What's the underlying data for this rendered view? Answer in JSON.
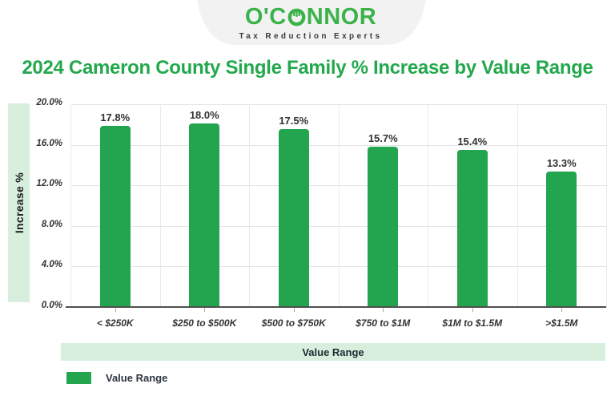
{
  "header": {
    "brand_full": "O'CONNOR",
    "brand_prefix": "O'C",
    "brand_suffix": "NNOR",
    "tagline": "Tax Reduction Experts"
  },
  "title": "2024 Cameron County Single Family % Increase by Value Range",
  "chart_data": {
    "type": "bar",
    "title": "2024 Cameron County Single Family % Increase by Value Range",
    "categories": [
      "< $250K",
      "$250 to $500K",
      "$500 to $750K",
      "$750 to $1M",
      "$1M to $1.5M",
      ">$1.5M"
    ],
    "values": [
      17.8,
      18.0,
      17.5,
      15.7,
      15.4,
      13.3
    ],
    "value_labels": [
      "17.8%",
      "18.0%",
      "17.5%",
      "15.7%",
      "15.4%",
      "13.3%"
    ],
    "xlabel": "Value Range",
    "ylabel": "Increase %",
    "ylim": [
      0,
      20
    ],
    "yticks": [
      20,
      16,
      12,
      8,
      4,
      0
    ],
    "ytick_labels": [
      "20.0%",
      "16.0%",
      "12.0%",
      "8.0%",
      "4.0%",
      "0.0%"
    ],
    "grid": true,
    "legend": {
      "position": "bottom-left",
      "items": [
        {
          "label": "Value Range",
          "color": "#23a44f"
        }
      ]
    },
    "bar_color": "#23a44f"
  },
  "colors": {
    "bar_green": "#23a44f",
    "logo_green": "#3db24a",
    "title_green": "#23a84d",
    "mint_band": "#d8efde",
    "gridline": "#e4e4e4",
    "axis_line": "#4f4f4f",
    "label_dark": "#333333",
    "badge_gray": "#f2f2f3"
  }
}
